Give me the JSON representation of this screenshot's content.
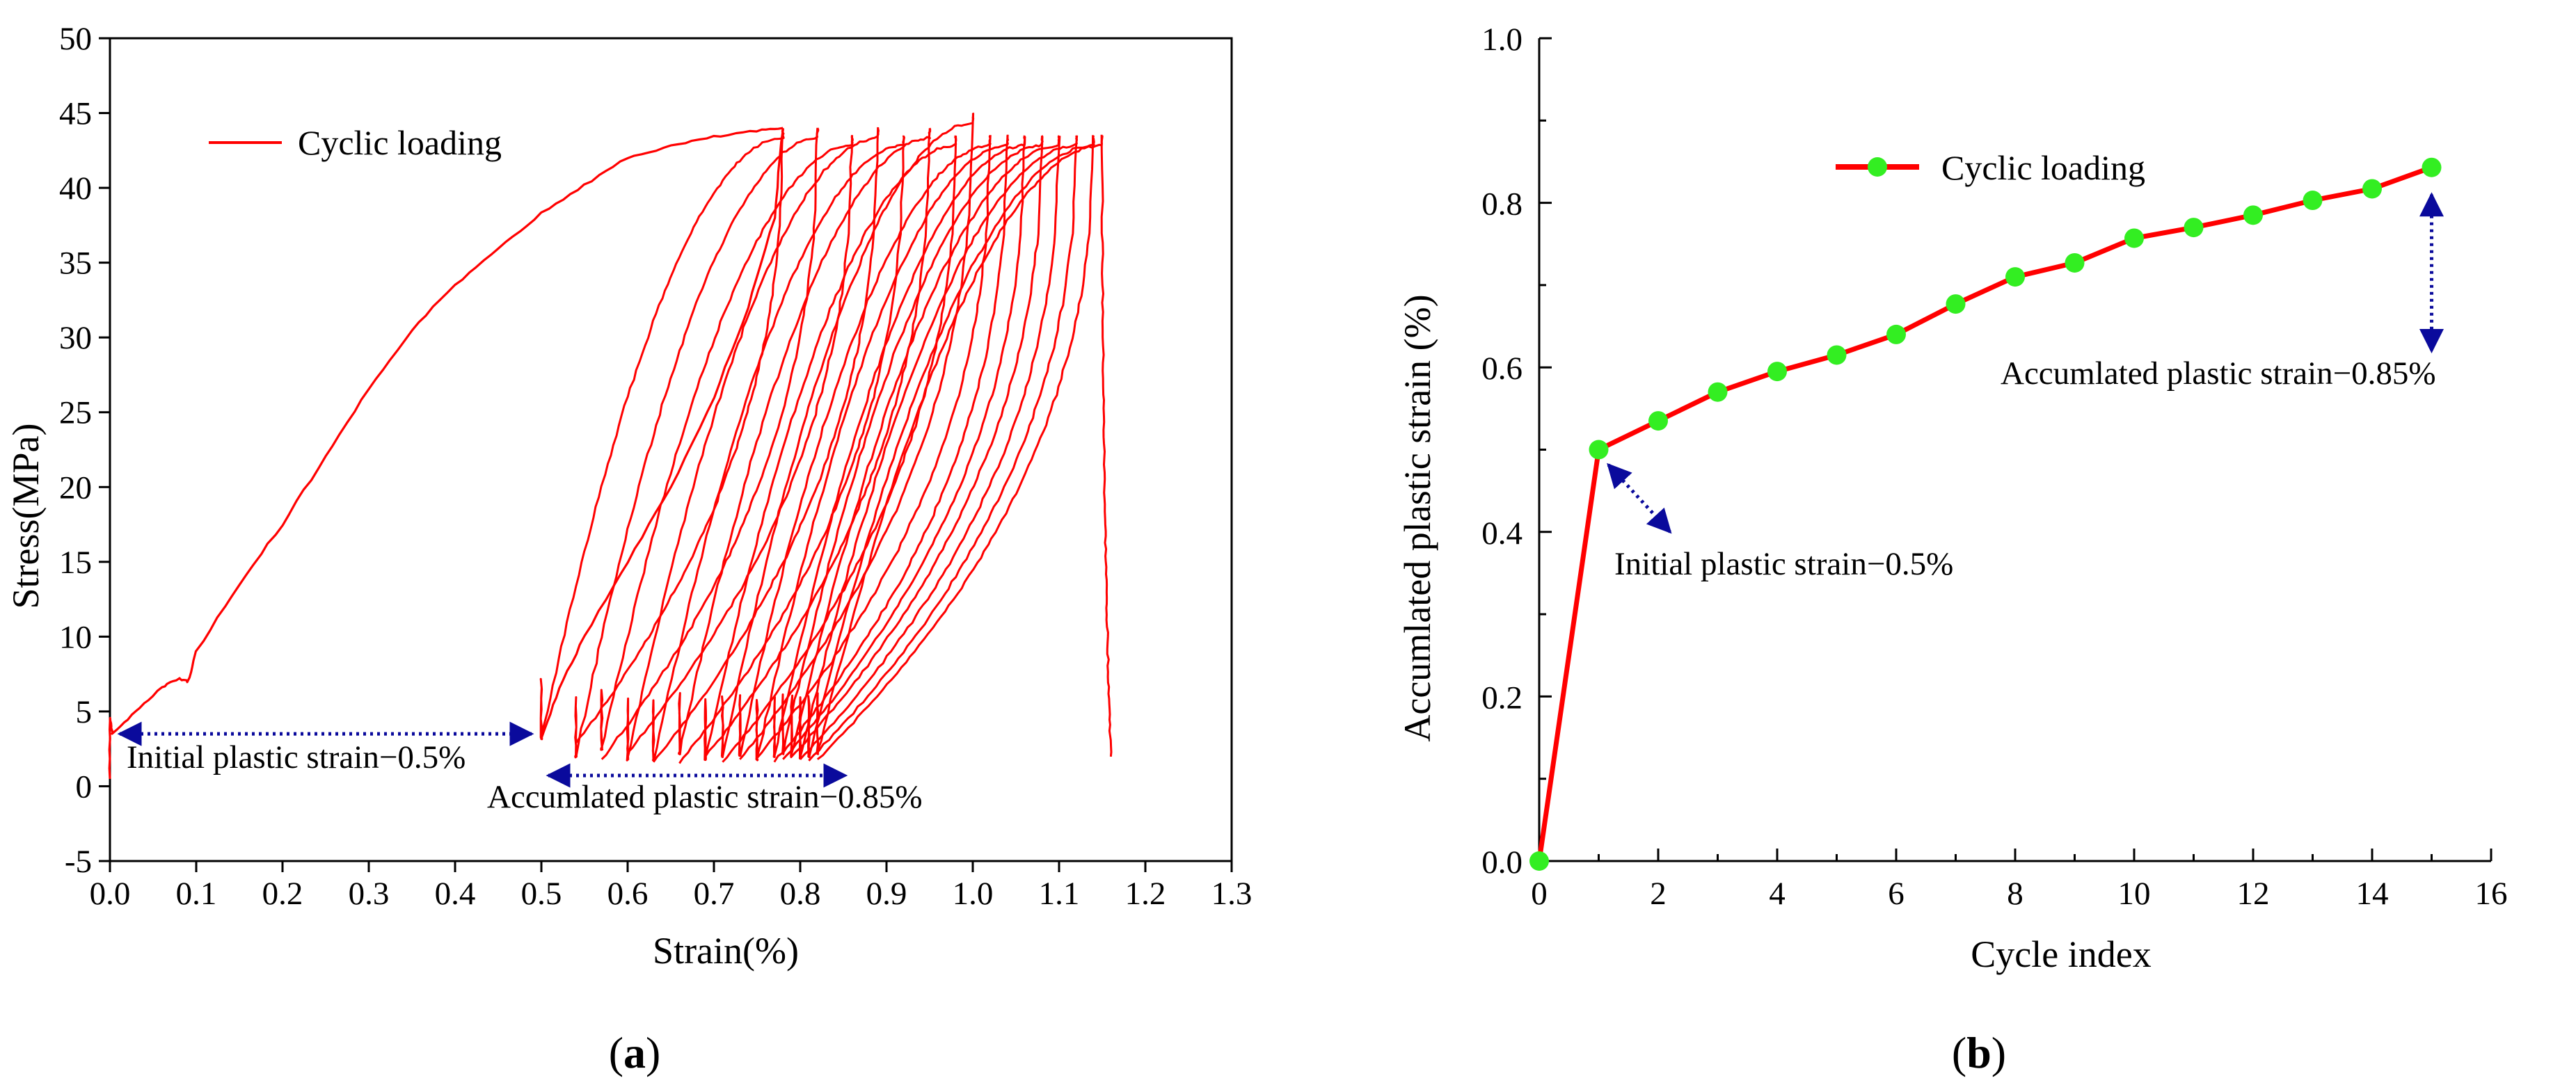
{
  "chart_data": [
    {
      "panel": "a",
      "caption": "a",
      "type": "line",
      "xlabel": "Strain(%)",
      "ylabel": "Stress(MPa)",
      "xlim": [
        0.0,
        1.3
      ],
      "ylim": [
        -5,
        50
      ],
      "xticks": [
        "0.0",
        "0.1",
        "0.2",
        "0.3",
        "0.4",
        "0.5",
        "0.6",
        "0.7",
        "0.8",
        "0.9",
        "1.0",
        "1.1",
        "1.2",
        "1.3"
      ],
      "yticks": [
        "-5",
        "0",
        "5",
        "10",
        "15",
        "20",
        "25",
        "30",
        "35",
        "40",
        "45",
        "50"
      ],
      "legend": {
        "label": "Cyclic  loading",
        "color": "#ff0000",
        "position": "top-left"
      },
      "series": {
        "name": "Cyclic  loading",
        "color": "#ff0000",
        "initial_loading": [
          [
            0.0,
            0.5
          ],
          [
            0.0,
            4.5
          ],
          [
            0.003,
            3.5
          ],
          [
            0.03,
            5.0
          ],
          [
            0.06,
            6.6
          ],
          [
            0.08,
            7.2
          ],
          [
            0.09,
            7.0
          ],
          [
            0.1,
            9.0
          ],
          [
            0.15,
            13.5
          ],
          [
            0.2,
            17.5
          ],
          [
            0.25,
            22.0
          ],
          [
            0.3,
            26.5
          ],
          [
            0.35,
            30.5
          ],
          [
            0.4,
            33.5
          ],
          [
            0.45,
            36.0
          ],
          [
            0.5,
            38.3
          ],
          [
            0.55,
            40.2
          ],
          [
            0.6,
            42.0
          ],
          [
            0.65,
            42.8
          ],
          [
            0.7,
            43.4
          ],
          [
            0.75,
            43.8
          ],
          [
            0.78,
            44.0
          ]
        ],
        "first_unloading": [
          [
            0.78,
            44.0
          ],
          [
            0.77,
            38.0
          ],
          [
            0.74,
            32.0
          ],
          [
            0.7,
            26.0
          ],
          [
            0.65,
            20.0
          ],
          [
            0.6,
            15.0
          ],
          [
            0.55,
            10.0
          ],
          [
            0.52,
            6.5
          ],
          [
            0.5,
            3.2
          ]
        ],
        "cycles": [
          {
            "start": 0.5,
            "end": 0.78,
            "peak": 44.0,
            "valley": 3.2
          },
          {
            "start": 0.54,
            "end": 0.82,
            "peak": 44.0,
            "valley": 2.0
          },
          {
            "start": 0.57,
            "end": 0.86,
            "peak": 43.5,
            "valley": 2.5
          },
          {
            "start": 0.6,
            "end": 0.89,
            "peak": 44.0,
            "valley": 1.8
          },
          {
            "start": 0.63,
            "end": 0.92,
            "peak": 43.5,
            "valley": 1.7
          },
          {
            "start": 0.66,
            "end": 0.95,
            "peak": 44.0,
            "valley": 2.2
          },
          {
            "start": 0.69,
            "end": 0.98,
            "peak": 43.5,
            "valley": 1.8
          },
          {
            "start": 0.71,
            "end": 1.0,
            "peak": 45.0,
            "valley": 2.0
          },
          {
            "start": 0.73,
            "end": 1.02,
            "peak": 43.5,
            "valley": 2.1
          },
          {
            "start": 0.75,
            "end": 1.04,
            "peak": 43.5,
            "valley": 1.8
          },
          {
            "start": 0.77,
            "end": 1.06,
            "peak": 43.5,
            "valley": 2.0
          },
          {
            "start": 0.78,
            "end": 1.08,
            "peak": 43.5,
            "valley": 2.2
          },
          {
            "start": 0.79,
            "end": 1.1,
            "peak": 43.5,
            "valley": 2.0
          },
          {
            "start": 0.8,
            "end": 1.12,
            "peak": 43.5,
            "valley": 1.9
          },
          {
            "start": 0.81,
            "end": 1.14,
            "peak": 43.5,
            "valley": 2.0
          },
          {
            "start": 0.82,
            "end": 1.15,
            "peak": 43.5,
            "valley": 2.2
          }
        ]
      },
      "annotations": [
        {
          "text": "Initial plastic strain−0.5%",
          "from": [
            0.0,
            3.5
          ],
          "to": [
            0.5,
            3.5
          ]
        },
        {
          "text": "Accumlated plastic strain−0.85%",
          "from": [
            0.5,
            1.0
          ],
          "to": [
            0.82,
            1.0
          ]
        }
      ]
    },
    {
      "panel": "b",
      "caption": "b",
      "type": "line",
      "xlabel": "Cycle index",
      "ylabel": "Accumlated plastic strain (%)",
      "xlim": [
        0,
        16
      ],
      "ylim": [
        0.0,
        1.0
      ],
      "xticks": [
        "0",
        "2",
        "4",
        "6",
        "8",
        "10",
        "12",
        "14",
        "16"
      ],
      "yticks": [
        "0.0",
        "0.2",
        "0.4",
        "0.6",
        "0.8",
        "1.0"
      ],
      "legend": {
        "label": "Cyclic loading",
        "line_color": "#ff0000",
        "marker_color": "#33ee22",
        "position": "top-right"
      },
      "x": [
        0,
        1,
        2,
        3,
        4,
        5,
        6,
        7,
        8,
        9,
        10,
        11,
        12,
        13,
        14,
        15
      ],
      "y": [
        0.0,
        0.5,
        0.535,
        0.57,
        0.595,
        0.615,
        0.64,
        0.677,
        0.71,
        0.727,
        0.757,
        0.77,
        0.785,
        0.803,
        0.817,
        0.843
      ],
      "annotations": [
        {
          "text": "Initial plastic strain−0.5%",
          "from": [
            1,
            0.49
          ],
          "to": [
            2.2,
            0.4
          ]
        },
        {
          "text": "Accumlated plastic strain−0.85%",
          "from": [
            15,
            0.81
          ],
          "to": [
            15,
            0.62
          ]
        }
      ]
    }
  ]
}
